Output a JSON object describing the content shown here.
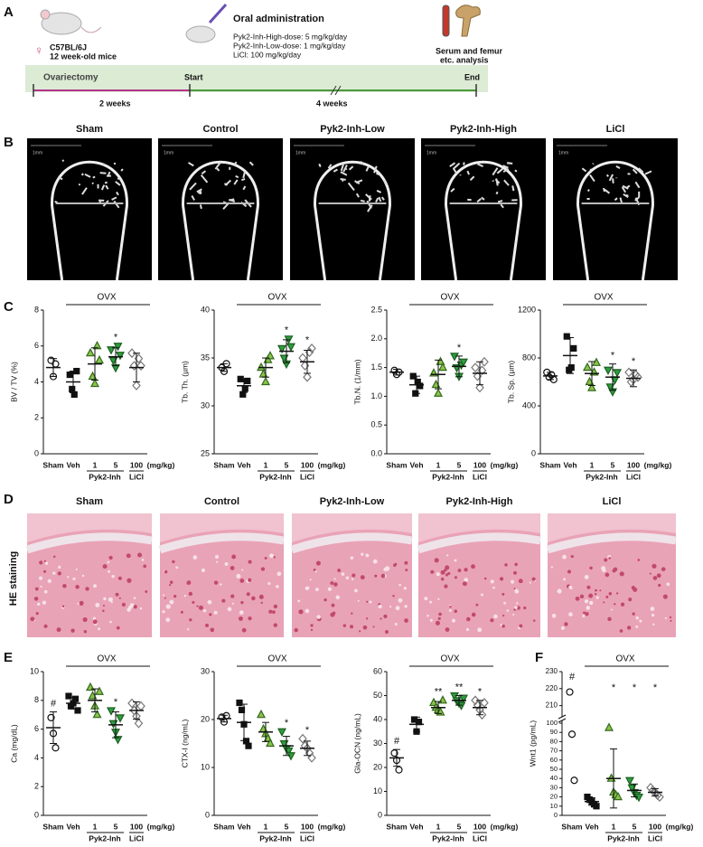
{
  "panel_labels": [
    "A",
    "B",
    "C",
    "D",
    "E",
    "F"
  ],
  "timeline": {
    "sex_symbol": "♀",
    "strain": "C57BL/6J",
    "age": "12 week-old mice",
    "treatment_title": "Oral administration",
    "doses": [
      "Pyk2-Inh-High-dose: 5 mg/kg/day",
      "Pyk2-Inh-Low-dose: 1 mg/kg/day",
      "LiCl: 100 mg/kg/day"
    ],
    "analysis": [
      "Serum and femur",
      "etc. analysis"
    ],
    "phase": "Ovariectomy",
    "start": "Start",
    "end": "End",
    "durations": [
      "2 weeks",
      "4 weeks"
    ]
  },
  "micro_ct": {
    "titles": [
      "Sham",
      "Control",
      "Pyk2-Inh-Low",
      "Pyk2-Inh-High",
      "LiCl"
    ],
    "scale_label": "1mm"
  },
  "he_staining": {
    "side_label": "HE staining",
    "titles": [
      "Sham",
      "Control",
      "Pyk2-Inh-Low",
      "Pyk2-Inh-High",
      "LiCl"
    ]
  },
  "markers": {
    "shapes": [
      "circle",
      "square",
      "triangle-up",
      "triangle-down",
      "diamond"
    ],
    "fills": [
      "none",
      "#111111",
      "#8bc34a",
      "#2e9e3e",
      "none"
    ],
    "strokes": [
      "#111111",
      "#111111",
      "#33691e",
      "#1b5e20",
      "#777777"
    ]
  },
  "chart_data": [
    {
      "type": "dot",
      "y_label": "BV / TV (%)",
      "ylim": [
        0,
        8
      ],
      "yticks": [
        0,
        2,
        4,
        6,
        8
      ],
      "categories": [
        "Sham",
        "Veh",
        "1",
        "5",
        "100"
      ],
      "unit_label": "(mg/kg)",
      "pyk2_label": "Pyk2-Inh",
      "licl_label": "LiCl",
      "ovx_label": "OVX",
      "groups": [
        {
          "points": [
            5.2,
            4.3,
            5.0
          ],
          "mean": 4.8,
          "sd": 0.5
        },
        {
          "points": [
            4.4,
            3.6,
            3.3,
            4.6
          ],
          "mean": 4.0,
          "sd": 0.6
        },
        {
          "points": [
            5.6,
            4.3,
            3.9,
            6.0,
            5.2
          ],
          "mean": 5.0,
          "sd": 0.9
        },
        {
          "points": [
            5.8,
            5.2,
            4.8,
            6.0,
            5.5
          ],
          "mean": 5.4,
          "sd": 0.5
        },
        {
          "points": [
            5.6,
            4.9,
            3.8,
            5.3,
            4.9
          ],
          "mean": 4.8,
          "sd": 0.8
        }
      ],
      "significance": [
        null,
        null,
        null,
        "*",
        null
      ]
    },
    {
      "type": "dot",
      "y_label": "Tb. Th. (µm)",
      "ylim": [
        25,
        40
      ],
      "yticks": [
        25,
        30,
        35,
        40
      ],
      "categories": [
        "Sham",
        "Veh",
        "1",
        "5",
        "100"
      ],
      "unit_label": "(mg/kg)",
      "pyk2_label": "Pyk2-Inh",
      "licl_label": "LiCl",
      "ovx_label": "OVX",
      "groups": [
        {
          "points": [
            34.0,
            33.6,
            34.4
          ],
          "mean": 34.0,
          "sd": 0.4
        },
        {
          "points": [
            32.8,
            31.2,
            31.8,
            32.6
          ],
          "mean": 32.1,
          "sd": 0.7
        },
        {
          "points": [
            34.0,
            33.3,
            32.5,
            34.8,
            35.2
          ],
          "mean": 34.0,
          "sd": 1.0
        },
        {
          "points": [
            36.0,
            35.0,
            34.4,
            37.0,
            36.2
          ],
          "mean": 35.7,
          "sd": 1.2
        },
        {
          "points": [
            35.0,
            34.2,
            33.0,
            35.6,
            36.0
          ],
          "mean": 34.6,
          "sd": 1.2
        }
      ],
      "significance": [
        null,
        null,
        null,
        "*",
        "*"
      ]
    },
    {
      "type": "dot",
      "y_label": "Tb.N. (1/mm)",
      "ylim": [
        0,
        2.5
      ],
      "yticks": [
        {
          "value": 0,
          "label": "0.0"
        },
        0.5,
        {
          "value": 1,
          "label": "1.0"
        },
        1.5,
        {
          "value": 2,
          "label": "2.0"
        },
        2.5
      ],
      "categories": [
        "Sham",
        "Veh",
        "1",
        "5",
        "100"
      ],
      "unit_label": "(mg/kg)",
      "pyk2_label": "Pyk2-Inh",
      "licl_label": "LiCl",
      "ovx_label": "OVX",
      "groups": [
        {
          "points": [
            1.45,
            1.38,
            1.42
          ],
          "mean": 1.42,
          "sd": 0.05
        },
        {
          "points": [
            1.35,
            1.05,
            1.25,
            1.18
          ],
          "mean": 1.2,
          "sd": 0.15
        },
        {
          "points": [
            1.4,
            1.2,
            1.05,
            1.6,
            1.5
          ],
          "mean": 1.38,
          "sd": 0.25
        },
        {
          "points": [
            1.7,
            1.5,
            1.35,
            1.55,
            1.6
          ],
          "mean": 1.52,
          "sd": 0.18
        },
        {
          "points": [
            1.5,
            1.35,
            1.15,
            1.45,
            1.6
          ],
          "mean": 1.4,
          "sd": 0.2
        }
      ],
      "significance": [
        null,
        null,
        null,
        "*",
        null
      ]
    },
    {
      "type": "dot",
      "y_label": "Tb. Sp. (µm)",
      "ylim": [
        0,
        1200
      ],
      "yticks": [
        0,
        400,
        800,
        1200
      ],
      "categories": [
        "Sham",
        "Veh",
        "1",
        "5",
        "100"
      ],
      "unit_label": "(mg/kg)",
      "pyk2_label": "Pyk2-Inh",
      "licl_label": "LiCl",
      "ovx_label": "OVX",
      "groups": [
        {
          "points": [
            680,
            640,
            660,
            620
          ],
          "mean": 650,
          "sd": 30
        },
        {
          "points": [
            980,
            700,
            720,
            880
          ],
          "mean": 820,
          "sd": 150
        },
        {
          "points": [
            720,
            600,
            550,
            680,
            760
          ],
          "mean": 670,
          "sd": 100
        },
        {
          "points": [
            700,
            560,
            520,
            620,
            680
          ],
          "mean": 640,
          "sd": 110
        },
        {
          "points": [
            680,
            600,
            620,
            660,
            640
          ],
          "mean": 630,
          "sd": 70
        }
      ],
      "significance": [
        null,
        null,
        null,
        "*",
        "*"
      ]
    },
    {
      "type": "dot",
      "y_label": "Ca (mg/dL)",
      "ylim": [
        0,
        10
      ],
      "yticks": [
        0,
        2,
        4,
        6,
        8,
        10
      ],
      "categories": [
        "Sham",
        "Veh",
        "1",
        "5",
        "100"
      ],
      "unit_label": "(mg/kg)",
      "pyk2_label": "Pyk2-Inh",
      "licl_label": "LiCl",
      "ovx_label": "OVX",
      "groups": [
        {
          "points": [
            6.8,
            5.7,
            4.7
          ],
          "mean": 6.1,
          "sd": 1.1
        },
        {
          "points": [
            8.3,
            7.6,
            7.8,
            8.1,
            7.3
          ],
          "mean": 7.8,
          "sd": 0.4
        },
        {
          "points": [
            8.9,
            8.3,
            7.6,
            7.0,
            8.6
          ],
          "mean": 8.0,
          "sd": 0.8
        },
        {
          "points": [
            7.3,
            6.4,
            5.8,
            5.3,
            6.8
          ],
          "mean": 6.3,
          "sd": 0.9
        },
        {
          "points": [
            7.8,
            7.3,
            6.9,
            6.4,
            7.6
          ],
          "mean": 7.3,
          "sd": 0.6
        }
      ],
      "significance": [
        "#",
        null,
        null,
        "*",
        null
      ]
    },
    {
      "type": "dot",
      "y_label": "CTX-I (ng/mL)",
      "ylim": [
        0,
        30
      ],
      "yticks": [
        0,
        10,
        20,
        30
      ],
      "categories": [
        "Sham",
        "Veh",
        "1",
        "5",
        "100"
      ],
      "unit_label": "(mg/kg)",
      "pyk2_label": "Pyk2-Inh",
      "licl_label": "LiCl",
      "ovx_label": "OVX",
      "groups": [
        {
          "points": [
            20.5,
            19.5,
            20.8
          ],
          "mean": 20.2,
          "sd": 0.7
        },
        {
          "points": [
            23.5,
            22,
            19,
            15.5,
            14.5
          ],
          "mean": 19.4,
          "sd": 3.8
        },
        {
          "points": [
            21,
            18,
            17,
            16,
            15
          ],
          "mean": 17.4,
          "sd": 2
        },
        {
          "points": [
            17.5,
            15,
            14,
            13.5,
            12.5
          ],
          "mean": 14.5,
          "sd": 2
        },
        {
          "points": [
            16,
            14.5,
            14,
            13,
            12
          ],
          "mean": 14,
          "sd": 1.5
        }
      ],
      "significance": [
        null,
        null,
        null,
        "*",
        "*"
      ]
    },
    {
      "type": "dot",
      "y_label": "Gla-OCN (ng/mL)",
      "ylim": [
        0,
        60
      ],
      "yticks": [
        0,
        10,
        20,
        30,
        40,
        50,
        60
      ],
      "categories": [
        "Sham",
        "Veh",
        "1",
        "5",
        "100"
      ],
      "unit_label": "(mg/kg)",
      "pyk2_label": "Pyk2-Inh",
      "licl_label": "LiCl",
      "ovx_label": "OVX",
      "groups": [
        {
          "points": [
            26,
            23,
            19
          ],
          "mean": 24,
          "sd": 3.5
        },
        {
          "points": [
            40,
            35,
            39
          ],
          "mean": 38,
          "sd": 3
        },
        {
          "points": [
            47,
            45,
            44,
            43,
            48
          ],
          "mean": 45,
          "sd": 2.5
        },
        {
          "points": [
            50,
            48,
            47,
            46,
            49
          ],
          "mean": 48,
          "sd": 2
        },
        {
          "points": [
            48,
            46,
            44,
            42,
            47
          ],
          "mean": 45,
          "sd": 3
        }
      ],
      "significance": [
        "#",
        null,
        "**",
        "**",
        "*"
      ]
    },
    {
      "type": "dot",
      "y_label": "Wnt1 (pg/mL)",
      "ylim": [
        0,
        100
      ],
      "yticks": [
        0,
        10,
        20,
        30,
        40,
        50,
        60,
        70,
        80,
        90,
        100
      ],
      "ylim_upper": [
        205,
        230
      ],
      "yticks_upper": [
        210,
        220,
        230
      ],
      "categories": [
        "Sham",
        "Veh",
        "1",
        "5",
        "100"
      ],
      "unit_label": "(mg/kg)",
      "pyk2_label": "Pyk2-Inh",
      "licl_label": "LiCl",
      "ovx_label": "OVX",
      "groups": [
        {
          "points": [
            218,
            88,
            38
          ],
          "mean": null,
          "sd": null
        },
        {
          "points": [
            20,
            17,
            15,
            12,
            10
          ],
          "mean": 15,
          "sd": 4
        },
        {
          "points": [
            95,
            40,
            25,
            22,
            20
          ],
          "mean": 40,
          "sd": 32
        },
        {
          "points": [
            38,
            30,
            25,
            22,
            20
          ],
          "mean": 27,
          "sd": 7
        },
        {
          "points": [
            30,
            27,
            25,
            22,
            20
          ],
          "mean": 25,
          "sd": 4
        }
      ],
      "significance": [
        "#",
        null,
        "*",
        "*",
        "*"
      ]
    }
  ]
}
